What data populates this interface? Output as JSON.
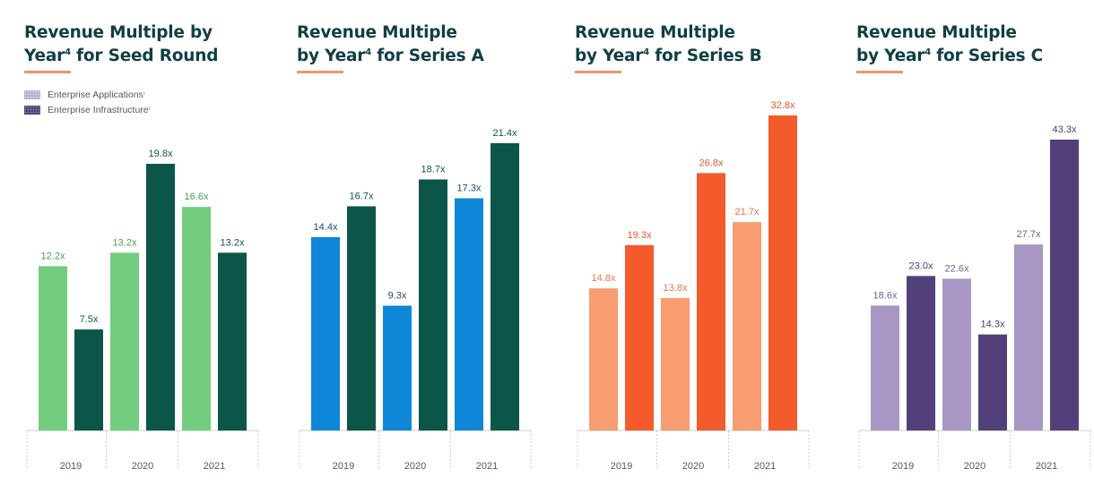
{
  "legend": {
    "apps_label": "Enterprise Applications",
    "apps_mark": "¹",
    "infra_label": "Enterprise Infrastructure",
    "infra_mark": "¹"
  },
  "chart_data": [
    {
      "type": "bar",
      "title_lines": [
        "Revenue Multiple by",
        "Year",
        " for Seed Round"
      ],
      "title_sup": "4",
      "categories": [
        "2019",
        "2020",
        "2021"
      ],
      "series": [
        {
          "name": "Enterprise Applications",
          "values": [
            12.2,
            13.2,
            16.6
          ],
          "labels": [
            "12.2x",
            "13.2x",
            "16.6x"
          ],
          "color": "#74cd7f",
          "label_color": "#4f9a5b"
        },
        {
          "name": "Enterprise Infrastructure",
          "values": [
            7.5,
            19.8,
            13.2
          ],
          "labels": [
            "7.5x",
            "19.8x",
            "13.2x"
          ],
          "color": "#0b5649",
          "label_color": "#0b5649"
        }
      ]
    },
    {
      "type": "bar",
      "title_lines": [
        "Revenue Multiple",
        "by Year",
        " for Series A"
      ],
      "title_sup": "4",
      "categories": [
        "2019",
        "2020",
        "2021"
      ],
      "series": [
        {
          "name": "Enterprise Applications",
          "values": [
            14.4,
            9.3,
            17.3
          ],
          "labels": [
            "14.4x",
            "9.3x",
            "17.3x"
          ],
          "color": "#0e87d9",
          "label_color": "#1f4a6b"
        },
        {
          "name": "Enterprise Infrastructure",
          "values": [
            16.7,
            18.7,
            21.4
          ],
          "labels": [
            "16.7x",
            "18.7x",
            "21.4x"
          ],
          "color": "#0b5649",
          "label_color": "#0b5649"
        }
      ]
    },
    {
      "type": "bar",
      "title_lines": [
        "Revenue Multiple",
        "by Year",
        " for Series B"
      ],
      "title_sup": "4",
      "categories": [
        "2019",
        "2020",
        "2021"
      ],
      "series": [
        {
          "name": "Enterprise Applications",
          "values": [
            14.8,
            13.8,
            21.7
          ],
          "labels": [
            "14.8x",
            "13.8x",
            "21.7x"
          ],
          "color": "#f89c72",
          "label_color": "#e8734a"
        },
        {
          "name": "Enterprise Infrastructure",
          "values": [
            19.3,
            26.8,
            32.8
          ],
          "labels": [
            "19.3x",
            "26.8x",
            "32.8x"
          ],
          "color": "#f35b2c",
          "label_color": "#e8562a"
        }
      ]
    },
    {
      "type": "bar",
      "title_lines": [
        "Revenue Multiple",
        "by Year",
        " for Series C"
      ],
      "title_sup": "4",
      "categories": [
        "2019",
        "2020",
        "2021"
      ],
      "series": [
        {
          "name": "Enterprise Applications",
          "values": [
            18.6,
            22.6,
            27.7
          ],
          "labels": [
            "18.6x",
            "22.6x",
            "27.7x"
          ],
          "color": "#a897c4",
          "label_color": "#6f6290"
        },
        {
          "name": "Enterprise Infrastructure",
          "values": [
            23.0,
            14.3,
            43.3
          ],
          "labels": [
            "23.0x",
            "14.3x",
            "43.3x"
          ],
          "color": "#52407a",
          "label_color": "#4a3d72"
        }
      ]
    }
  ]
}
